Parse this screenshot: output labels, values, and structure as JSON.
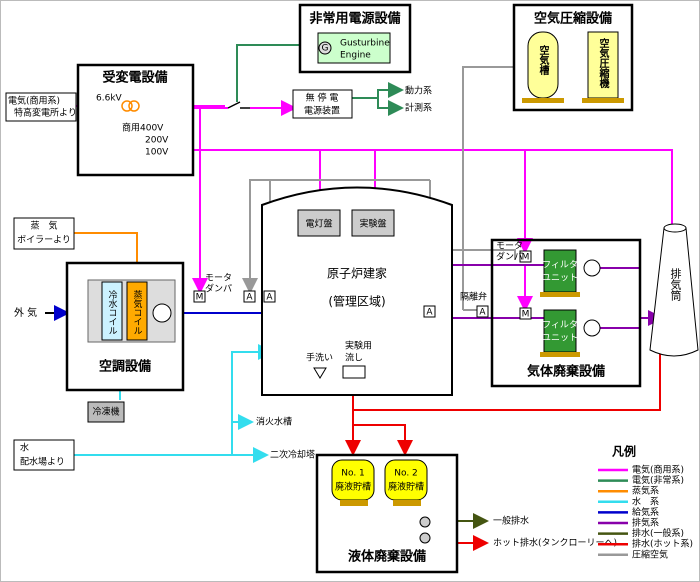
{
  "emergency_power": {
    "title": "非常用電源設備",
    "generator_symbol": "G",
    "generator_lines": [
      "Gusturbine",
      "Engine"
    ]
  },
  "air_compressor": {
    "title": "空気圧縮設備",
    "tank": "空気槽",
    "compressor": "空気圧縮機"
  },
  "substation": {
    "title": "受変電設備",
    "voltage_in": "6.6kV",
    "outputs": [
      "商用400V",
      "200V",
      "100V"
    ],
    "source": [
      "電気(商用系)",
      "特高変電所より"
    ]
  },
  "ups": {
    "lines": [
      "無 停 電",
      "電源装置"
    ],
    "outputs": [
      "動力系",
      "計測系"
    ]
  },
  "reactor": {
    "title": "原子炉建家",
    "subtitle": "(管理区域)",
    "panels": [
      "電灯盤",
      "実験盤"
    ],
    "sinks": [
      "手洗い",
      "実験用",
      "流し"
    ]
  },
  "steam": {
    "lines": [
      "蒸　気",
      "ボイラーより"
    ]
  },
  "hvac": {
    "title": "空調設備",
    "outside_air": "外 気",
    "cooling_coil": "冷水コイル",
    "steam_coil": "蒸気コイル",
    "damper": [
      "モータ",
      "ダンパ"
    ],
    "chiller": "冷凍機"
  },
  "symbols": {
    "motor": "M",
    "auto": "A"
  },
  "gas_waste": {
    "title": "気体廃棄設備",
    "isolation_valve": "隔離弁",
    "damper": [
      "モータ",
      "ダンパ"
    ],
    "filter": [
      "フィルタ",
      "ユニット"
    ]
  },
  "stack": "排気筒",
  "water": {
    "lines": [
      "水",
      "配水場より"
    ],
    "destinations": [
      "消火水槽",
      "二次冷却塔"
    ]
  },
  "liquid_waste": {
    "title": "液体廃棄設備",
    "tanks": [
      [
        "No. 1",
        "廃液貯槽"
      ],
      [
        "No. 2",
        "廃液貯槽"
      ]
    ],
    "outputs": [
      "一般排水",
      "ホット排水(タンクローリーへ)"
    ]
  },
  "legend": {
    "title": "凡例",
    "items": [
      {
        "label": "電気(商用系)",
        "color": "#ff00ff"
      },
      {
        "label": "電気(非常系)",
        "color": "#2e8b57"
      },
      {
        "label": "蒸気系",
        "color": "#ff8c00"
      },
      {
        "label": "水　系",
        "color": "#33ddee"
      },
      {
        "label": "給気系",
        "color": "#0000cc"
      },
      {
        "label": "排気系",
        "color": "#8800aa"
      },
      {
        "label": "排水(一般系)",
        "color": "#445511"
      },
      {
        "label": "排水(ホット系)",
        "color": "#ee0000"
      },
      {
        "label": "圧縮空気",
        "color": "#999999"
      }
    ]
  }
}
